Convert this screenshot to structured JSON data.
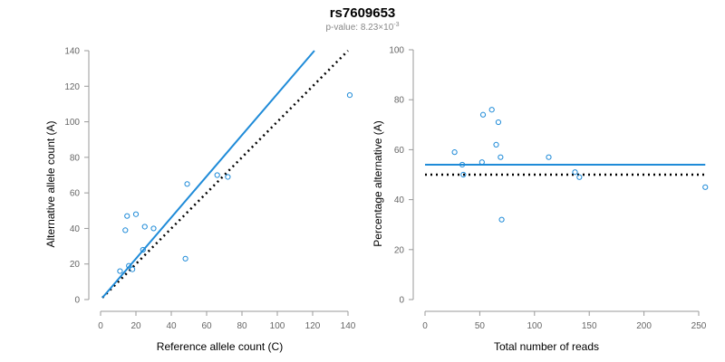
{
  "header": {
    "title": "rs7609653",
    "subtitle_prefix": "p-value: 8.23×10",
    "subtitle_exponent": "-3"
  },
  "colors": {
    "points": "#1f8bd8",
    "fit_line": "#1f8bd8",
    "reference_line": "#000000"
  },
  "chart_data": [
    {
      "type": "scatter",
      "xlabel": "Reference allele count (C)",
      "ylabel": "Alternative allele count (A)",
      "xlim": [
        0,
        140
      ],
      "ylim": [
        0,
        140
      ],
      "xticks": [
        0,
        20,
        40,
        60,
        80,
        100,
        120,
        140
      ],
      "yticks": [
        0,
        20,
        40,
        60,
        80,
        100,
        120,
        140
      ],
      "grid": false,
      "points": [
        {
          "x": 11,
          "y": 16
        },
        {
          "x": 14,
          "y": 39
        },
        {
          "x": 15,
          "y": 47
        },
        {
          "x": 16,
          "y": 19
        },
        {
          "x": 18,
          "y": 17
        },
        {
          "x": 20,
          "y": 48
        },
        {
          "x": 24,
          "y": 28
        },
        {
          "x": 25,
          "y": 41
        },
        {
          "x": 30,
          "y": 40
        },
        {
          "x": 48,
          "y": 23
        },
        {
          "x": 49,
          "y": 65
        },
        {
          "x": 66,
          "y": 70
        },
        {
          "x": 72,
          "y": 69
        },
        {
          "x": 141,
          "y": 115
        }
      ],
      "fit_line": {
        "x": [
          1,
          121
        ],
        "y": [
          1,
          140
        ]
      },
      "reference_line": {
        "x": [
          1,
          140
        ],
        "y": [
          1,
          140
        ]
      }
    },
    {
      "type": "scatter",
      "xlabel": "Total number of reads",
      "ylabel": "Percentage alternative (A)",
      "xlim": [
        0,
        250
      ],
      "ylim": [
        0,
        100
      ],
      "xticks": [
        0,
        50,
        100,
        150,
        200,
        250
      ],
      "yticks": [
        0,
        20,
        40,
        60,
        80,
        100
      ],
      "grid": false,
      "points": [
        {
          "x": 27,
          "y": 59
        },
        {
          "x": 34,
          "y": 54
        },
        {
          "x": 35,
          "y": 50
        },
        {
          "x": 52,
          "y": 55
        },
        {
          "x": 53,
          "y": 74
        },
        {
          "x": 61,
          "y": 76
        },
        {
          "x": 65,
          "y": 62
        },
        {
          "x": 67,
          "y": 71
        },
        {
          "x": 69,
          "y": 57
        },
        {
          "x": 70,
          "y": 32
        },
        {
          "x": 113,
          "y": 57
        },
        {
          "x": 137,
          "y": 51
        },
        {
          "x": 141,
          "y": 49
        },
        {
          "x": 256,
          "y": 45
        }
      ],
      "fit_line": {
        "x": [
          0,
          256
        ],
        "y": [
          54,
          54
        ]
      },
      "reference_line": {
        "x": [
          0,
          256
        ],
        "y": [
          50,
          50
        ]
      }
    }
  ]
}
